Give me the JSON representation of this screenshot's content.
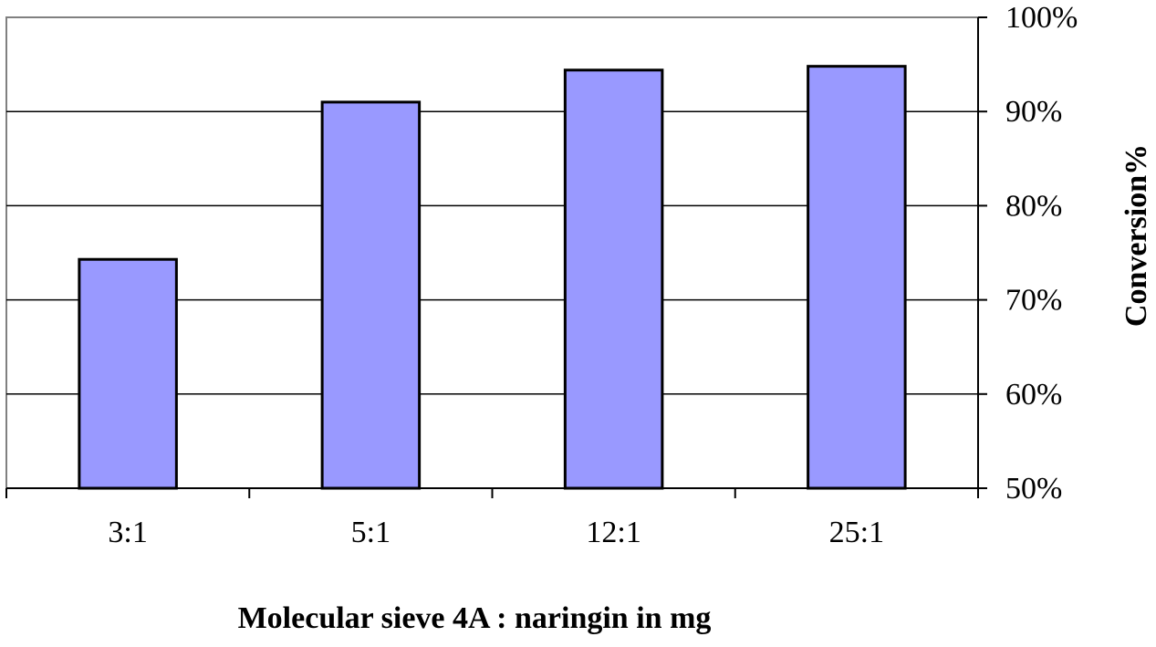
{
  "chart_data": {
    "type": "bar",
    "categories": [
      "3:1",
      "5:1",
      "12:1",
      "25:1"
    ],
    "values": [
      74.3,
      91.0,
      94.4,
      94.8
    ],
    "value_unit": "%",
    "xlabel": "Molecular sieve 4A : naringin in mg",
    "ylabel": "Conversion%",
    "ylim": [
      50,
      100
    ],
    "yticks": [
      50,
      60,
      70,
      80,
      90,
      100
    ],
    "ytick_labels": [
      "50%",
      "60%",
      "70%",
      "80%",
      "90%",
      "100%"
    ],
    "y_axis_side": "right",
    "grid": true,
    "legend": "none",
    "colors": {
      "bar_fill": "#9999ff",
      "bar_stroke": "#000000",
      "gridline": "#000000",
      "plot_border": "#808080",
      "axis": "#000000"
    }
  }
}
